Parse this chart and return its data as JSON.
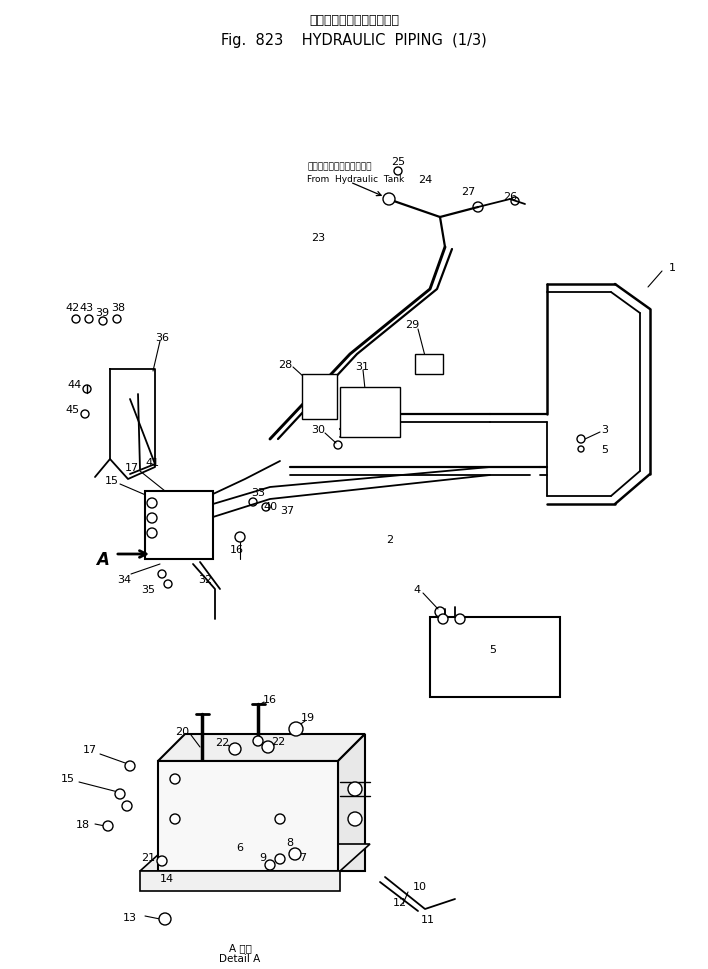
{
  "title_jp": "ハイドロリックパイピング",
  "title_en": "Fig.  823    HYDRAULIC  PIPING  (1/3)",
  "bg_color": "#ffffff",
  "line_color": "#000000",
  "detail_label_jp": "A 詳細",
  "detail_label_en": "Detail A",
  "from_tank_jp": "ハイドロリックタンクから",
  "from_tank_en": "From  Hydraulic  Tank",
  "label_A": "A",
  "figsize": [
    7.08,
    9.7
  ],
  "dpi": 100
}
